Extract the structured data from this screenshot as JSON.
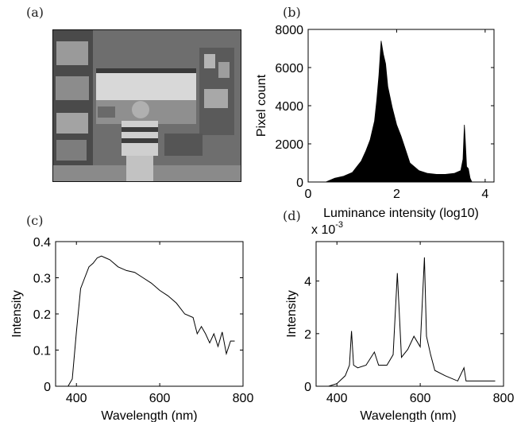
{
  "panels": {
    "a": "(a)",
    "b": "(b)",
    "c": "(c)",
    "d": "(d)"
  },
  "chart_data": [
    {
      "panel": "b",
      "type": "area",
      "xlabel": "Luminance intensity (log10)",
      "ylabel": "Pixel count",
      "xlim": [
        0,
        4.2
      ],
      "ylim": [
        0,
        8000
      ],
      "xticks": [
        0,
        2,
        4
      ],
      "yticks": [
        0,
        2000,
        4000,
        6000,
        8000
      ],
      "x": [
        0.4,
        0.6,
        0.8,
        1.0,
        1.1,
        1.2,
        1.3,
        1.4,
        1.5,
        1.55,
        1.6,
        1.65,
        1.7,
        1.75,
        1.8,
        1.9,
        2.0,
        2.1,
        2.2,
        2.3,
        2.5,
        2.7,
        2.9,
        3.1,
        3.3,
        3.45,
        3.5,
        3.53,
        3.55,
        3.58,
        3.62,
        3.66,
        3.7
      ],
      "y": [
        0,
        200,
        300,
        500,
        800,
        1100,
        1600,
        2200,
        3200,
        4300,
        5600,
        7400,
        6700,
        6200,
        5000,
        3900,
        3000,
        2400,
        1700,
        1000,
        600,
        450,
        400,
        400,
        450,
        600,
        1200,
        3000,
        2200,
        800,
        700,
        200,
        0
      ],
      "grid": false
    },
    {
      "panel": "c",
      "type": "line",
      "xlabel": "Wavelength (nm)",
      "ylabel": "Intensity",
      "xlim": [
        350,
        800
      ],
      "ylim": [
        0,
        0.4
      ],
      "xticks": [
        400,
        600,
        800
      ],
      "yticks": [
        0,
        0.1,
        0.2,
        0.3,
        0.4
      ],
      "ytick_labels": [
        "0",
        "0.1",
        "0.2",
        "0.3",
        "0.4"
      ],
      "x": [
        380,
        390,
        400,
        410,
        420,
        430,
        440,
        450,
        460,
        470,
        480,
        500,
        520,
        540,
        560,
        580,
        600,
        620,
        640,
        660,
        680,
        690,
        700,
        710,
        720,
        730,
        740,
        750,
        760,
        770,
        780
      ],
      "y": [
        0,
        0.02,
        0.15,
        0.27,
        0.3,
        0.33,
        0.34,
        0.355,
        0.36,
        0.355,
        0.35,
        0.33,
        0.32,
        0.315,
        0.3,
        0.285,
        0.265,
        0.25,
        0.23,
        0.2,
        0.19,
        0.145,
        0.165,
        0.145,
        0.12,
        0.145,
        0.11,
        0.15,
        0.09,
        0.125,
        0.125
      ],
      "grid": false
    },
    {
      "panel": "d",
      "type": "line",
      "xlabel": "Wavelength (nm)",
      "ylabel": "Intensity",
      "multiplier_label": "x 10",
      "multiplier_exponent": "-3",
      "xlim": [
        350,
        800
      ],
      "ylim": [
        0,
        0.0055
      ],
      "xticks": [
        400,
        600,
        800
      ],
      "yticks": [
        0,
        0.002,
        0.004
      ],
      "ytick_labels": [
        "0",
        "2",
        "4"
      ],
      "x": [
        380,
        400,
        420,
        430,
        435,
        440,
        450,
        470,
        490,
        500,
        520,
        535,
        545,
        555,
        570,
        585,
        600,
        610,
        615,
        625,
        635,
        660,
        690,
        705,
        710,
        740,
        780
      ],
      "y": [
        0,
        0.0001,
        0.0004,
        0.0008,
        0.0021,
        0.0008,
        0.0007,
        0.0008,
        0.0013,
        0.0008,
        0.0008,
        0.0012,
        0.0043,
        0.0011,
        0.0014,
        0.0019,
        0.0015,
        0.0049,
        0.0019,
        0.0012,
        0.0006,
        0.0004,
        0.0002,
        0.0007,
        0.0002,
        0.0002,
        0.0002
      ],
      "grid": false
    }
  ]
}
